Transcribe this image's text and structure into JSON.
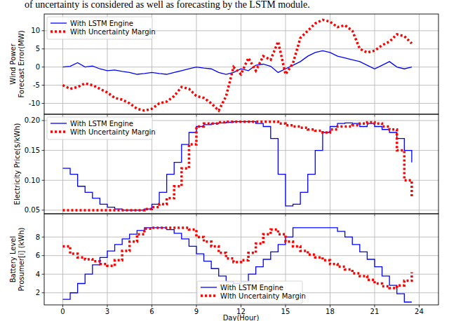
{
  "caption": "of uncertainty is considered as well as forecasting by the LSTM module.",
  "chart_data": [
    {
      "type": "line",
      "ylabel": [
        "Wind Power",
        "Forecast Error(MW)"
      ],
      "x": [
        0,
        0.5,
        1,
        1.5,
        2,
        2.5,
        3,
        3.5,
        4,
        4.5,
        5,
        5.5,
        6,
        6.5,
        7,
        7.5,
        8,
        8.5,
        9,
        9.5,
        10,
        10.5,
        11,
        11.5,
        12,
        12.5,
        13,
        13.5,
        14,
        14.5,
        15,
        15.5,
        16,
        16.5,
        17,
        17.5,
        18,
        18.5,
        19,
        19.5,
        20,
        20.5,
        21,
        21.5,
        22,
        22.5,
        23,
        23.5
      ],
      "xlim": [
        -1.25,
        25.3
      ],
      "xticks": [
        0,
        3,
        6,
        9,
        12,
        15,
        18,
        21,
        24
      ],
      "ylim": [
        -13,
        14.6
      ],
      "yticks": [
        -10,
        -5,
        0,
        5,
        10
      ],
      "grid": true,
      "legend": "upper left",
      "tick_labels": "y",
      "series": [
        {
          "name": "With LSTM Engine",
          "color": "#0000ff",
          "line_style": "solid",
          "values": [
            0,
            0.2,
            1.2,
            0,
            0.3,
            -0.5,
            -1,
            -0.8,
            -1.2,
            -1.5,
            -2,
            -1.8,
            -1.5,
            -1.8,
            -2,
            -1.5,
            -1,
            -0.5,
            0,
            -0.3,
            -0.5,
            -1.5,
            -2,
            -1.5,
            -0.5,
            -1,
            0.5,
            0.8,
            0.2,
            -1.5,
            -0.5,
            0.5,
            1.5,
            3,
            4,
            4.5,
            4,
            3,
            2.5,
            2,
            1.5,
            0.5,
            -0.5,
            0.5,
            1.5,
            0,
            -0.5,
            0
          ]
        },
        {
          "name": "With Uncertainty Margin",
          "color": "#ff0000",
          "line_style": "dotted",
          "values": [
            -5,
            -6,
            -5.5,
            -4.5,
            -5,
            -6,
            -7,
            -8.5,
            -9,
            -10,
            -11.5,
            -12,
            -11.5,
            -10,
            -9.5,
            -8,
            -5.5,
            -6,
            -8,
            -8.5,
            -10,
            -12,
            -8,
            0,
            -2,
            2.5,
            -1,
            3,
            2,
            7,
            -2,
            1,
            8,
            10,
            12,
            13,
            12.5,
            11,
            11.5,
            10,
            5,
            4,
            4.5,
            6,
            7,
            9,
            8.5,
            6.5
          ]
        }
      ]
    },
    {
      "type": "step",
      "ylabel": [
        "Electricity Price($/kWh)"
      ],
      "x": [
        0,
        0.5,
        1,
        1.5,
        2,
        2.5,
        3,
        3.5,
        4,
        4.5,
        5,
        5.5,
        6,
        6.5,
        7,
        7.5,
        8,
        8.5,
        9,
        9.5,
        10,
        10.5,
        11,
        11.5,
        12,
        12.5,
        13,
        13.5,
        14,
        14.5,
        15,
        15.5,
        16,
        16.5,
        17,
        17.5,
        18,
        18.5,
        19,
        19.5,
        20,
        20.5,
        21,
        21.5,
        22,
        22.5,
        23,
        23.5
      ],
      "xlim": [
        -1.25,
        25.3
      ],
      "xticks": [
        0,
        3,
        6,
        9,
        12,
        15,
        18,
        21,
        24
      ],
      "ylim": [
        0.044,
        0.2105
      ],
      "yticks": [
        0.05,
        {
          "value": 0.1,
          "label": "0.10"
        },
        0.15,
        {
          "value": 0.2,
          "label": "0.20"
        }
      ],
      "grid": true,
      "legend": "upper left",
      "tick_labels": "y",
      "series": [
        {
          "name": "With LSTM Engine",
          "color": "#0000ff",
          "line_style": "solid",
          "values": [
            0.12,
            0.11,
            0.09,
            0.08,
            0.07,
            0.06,
            0.055,
            0.052,
            0.05,
            0.05,
            0.05,
            0.052,
            0.06,
            0.08,
            0.11,
            0.13,
            0.16,
            0.18,
            0.19,
            0.193,
            0.195,
            0.196,
            0.197,
            0.198,
            0.198,
            0.198,
            0.195,
            0.19,
            0.17,
            0.11,
            0.057,
            0.06,
            0.08,
            0.11,
            0.15,
            0.18,
            0.19,
            0.195,
            0.196,
            0.195,
            0.19,
            0.195,
            0.19,
            0.185,
            0.18,
            0.17,
            0.15,
            0.13
          ]
        },
        {
          "name": "With Uncertainty Margin",
          "color": "#ff0000",
          "line_style": "dotted",
          "values": [
            0.05,
            0.05,
            0.05,
            0.05,
            0.05,
            0.05,
            0.05,
            0.05,
            0.05,
            0.05,
            0.05,
            0.052,
            0.055,
            0.06,
            0.07,
            0.09,
            0.12,
            0.16,
            0.19,
            0.195,
            0.195,
            0.197,
            0.198,
            0.198,
            0.198,
            0.198,
            0.198,
            0.198,
            0.198,
            0.195,
            0.192,
            0.19,
            0.188,
            0.185,
            0.183,
            0.18,
            0.185,
            0.19,
            0.19,
            0.192,
            0.195,
            0.197,
            0.195,
            0.19,
            0.185,
            0.15,
            0.1,
            0.07
          ]
        }
      ]
    },
    {
      "type": "step",
      "ylabel": [
        "Battery Level",
        "Prosumer[i] (kWh)"
      ],
      "xlabel": "Day(Hour)",
      "x": [
        0,
        0.5,
        1,
        1.5,
        2,
        2.5,
        3,
        3.5,
        4,
        4.5,
        5,
        5.5,
        6,
        6.5,
        7,
        7.5,
        8,
        8.5,
        9,
        9.5,
        10,
        10.5,
        11,
        11.5,
        12,
        12.5,
        13,
        13.5,
        14,
        14.5,
        15,
        15.5,
        16,
        16.5,
        17,
        17.5,
        18,
        18.5,
        19,
        19.5,
        20,
        20.5,
        21,
        21.5,
        22,
        22.5,
        23,
        23.5
      ],
      "xlim": [
        -1.25,
        25.3
      ],
      "xticks": [
        0,
        3,
        6,
        9,
        12,
        15,
        18,
        21,
        24
      ],
      "ylim": [
        0.7,
        10.5
      ],
      "yticks": [
        2,
        4,
        6,
        8
      ],
      "grid": true,
      "legend": "lower center",
      "series": [
        {
          "name": "With LSTM Engine",
          "color": "#0000ff",
          "line_style": "solid",
          "values": [
            1.3,
            2,
            3,
            4,
            5,
            5.8,
            6.5,
            7.2,
            7.8,
            8.3,
            8.7,
            9,
            9,
            9,
            8.8,
            8.4,
            7.8,
            7,
            6.2,
            5.4,
            4.6,
            3.8,
            3.2,
            3,
            3.2,
            4,
            4.8,
            5.6,
            6.4,
            7.2,
            8,
            9,
            9,
            9,
            9,
            9,
            9,
            8.6,
            8,
            7.2,
            6.4,
            5.6,
            4.8,
            3.8,
            2.8,
            1.9,
            1,
            1
          ]
        },
        {
          "name": "Wlth Uncertainty Margin",
          "color": "#ff0000",
          "line_style": "dotted",
          "values": [
            7,
            6.2,
            5.8,
            5.6,
            5.4,
            5.1,
            4.9,
            5.5,
            6.5,
            7.5,
            8.3,
            8.9,
            9,
            9,
            9,
            9,
            9,
            8.8,
            8,
            7.5,
            7,
            6.3,
            5.7,
            5.3,
            5.5,
            6.3,
            7.3,
            8.3,
            8.8,
            8.3,
            7.5,
            7,
            6.5,
            6.1,
            5.8,
            5.5,
            5.1,
            4.8,
            4.5,
            4.1,
            3.8,
            3.4,
            3,
            2.7,
            2.5,
            2.8,
            3.3,
            4.2
          ]
        }
      ]
    }
  ]
}
